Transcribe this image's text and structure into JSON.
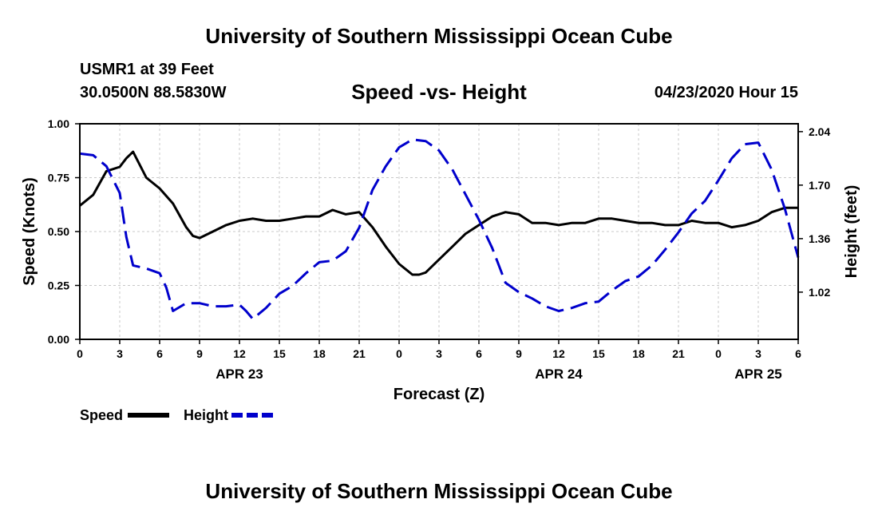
{
  "header": {
    "title_top": "University of Southern Mississippi Ocean Cube",
    "station": "USMR1 at 39 Feet",
    "coords": "30.0500N 88.5830W",
    "subtitle": "Speed -vs- Height",
    "datetime": "04/23/2020 Hour 15",
    "title_bottom": "University of Southern Mississippi Ocean Cube"
  },
  "chart_data": {
    "type": "line",
    "title": "Speed -vs- Height",
    "xlabel": "Forecast (Z)",
    "ylabel_left": "Speed (Knots)",
    "ylabel_right": "Height (feet)",
    "xlim": [
      0,
      54
    ],
    "ylim_left": [
      0,
      1
    ],
    "ylim_right": [
      0.72,
      2.09
    ],
    "x_ticks": [
      0,
      3,
      6,
      9,
      12,
      15,
      18,
      21,
      24,
      27,
      30,
      33,
      36,
      39,
      42,
      45,
      48,
      51,
      54
    ],
    "x_tick_labels": [
      "0",
      "3",
      "6",
      "9",
      "12",
      "15",
      "18",
      "21",
      "0",
      "3",
      "6",
      "9",
      "12",
      "15",
      "18",
      "21",
      "0",
      "3",
      "6"
    ],
    "date_labels": [
      {
        "x": 12,
        "label": "APR 23"
      },
      {
        "x": 36,
        "label": "APR 24"
      },
      {
        "x": 51,
        "label": "APR 25"
      }
    ],
    "y_ticks_left": [
      0,
      0.25,
      0.5,
      0.75,
      1
    ],
    "y_tick_labels_left": [
      "0.00",
      "0.25",
      "0.50",
      "0.75",
      "1.00"
    ],
    "y_ticks_right": [
      1.02,
      1.36,
      1.7,
      2.04
    ],
    "y_tick_labels_right": [
      "1.02",
      "1.36",
      "1.70",
      "2.04"
    ],
    "grid": true,
    "legend_position": "bottom-left",
    "series": [
      {
        "name": "Speed",
        "axis": "left",
        "color": "#000000",
        "style": "solid",
        "x": [
          0,
          1,
          2,
          3,
          3.5,
          4,
          5,
          6,
          7,
          8,
          8.5,
          9,
          10,
          11,
          12,
          13,
          14,
          15,
          16,
          17,
          18,
          19,
          20,
          21,
          22,
          23,
          24,
          25,
          25.5,
          26,
          27,
          28,
          29,
          30,
          31,
          32,
          33,
          34,
          35,
          36,
          37,
          38,
          39,
          40,
          41,
          42,
          43,
          44,
          45,
          46,
          47,
          48,
          49,
          50,
          51,
          52,
          53,
          54
        ],
        "values": [
          0.62,
          0.67,
          0.78,
          0.8,
          0.84,
          0.87,
          0.75,
          0.7,
          0.63,
          0.52,
          0.48,
          0.47,
          0.5,
          0.53,
          0.55,
          0.56,
          0.55,
          0.55,
          0.56,
          0.57,
          0.57,
          0.6,
          0.58,
          0.59,
          0.52,
          0.43,
          0.35,
          0.3,
          0.3,
          0.31,
          0.37,
          0.43,
          0.49,
          0.53,
          0.57,
          0.59,
          0.58,
          0.54,
          0.54,
          0.53,
          0.54,
          0.54,
          0.56,
          0.56,
          0.55,
          0.54,
          0.54,
          0.53,
          0.53,
          0.55,
          0.54,
          0.54,
          0.52,
          0.53,
          0.55,
          0.59,
          0.61,
          0.61
        ]
      },
      {
        "name": "Height",
        "axis": "right",
        "color": "#0000cc",
        "style": "dashed",
        "x": [
          0,
          1,
          2,
          3,
          3.5,
          4,
          5,
          6,
          6.5,
          7,
          8,
          9,
          10,
          11,
          12,
          12.5,
          13,
          14,
          15,
          16,
          17,
          18,
          19,
          20,
          21,
          22,
          23,
          24,
          25,
          26,
          27,
          28,
          29,
          30,
          31,
          32,
          33,
          34,
          35,
          36,
          37,
          38,
          39,
          40,
          41,
          42,
          43,
          44,
          45,
          46,
          47,
          48,
          49,
          50,
          51,
          52,
          53,
          54
        ],
        "values": [
          1.9,
          1.89,
          1.82,
          1.65,
          1.37,
          1.19,
          1.17,
          1.14,
          1.05,
          0.9,
          0.95,
          0.95,
          0.93,
          0.93,
          0.94,
          0.9,
          0.85,
          0.92,
          1.01,
          1.06,
          1.14,
          1.21,
          1.22,
          1.28,
          1.43,
          1.67,
          1.82,
          1.94,
          1.99,
          1.98,
          1.92,
          1.8,
          1.64,
          1.48,
          1.3,
          1.08,
          1.02,
          0.98,
          0.93,
          0.9,
          0.92,
          0.95,
          0.96,
          1.03,
          1.09,
          1.12,
          1.19,
          1.29,
          1.4,
          1.52,
          1.6,
          1.73,
          1.87,
          1.96,
          1.97,
          1.8,
          1.55,
          1.24
        ]
      }
    ]
  }
}
